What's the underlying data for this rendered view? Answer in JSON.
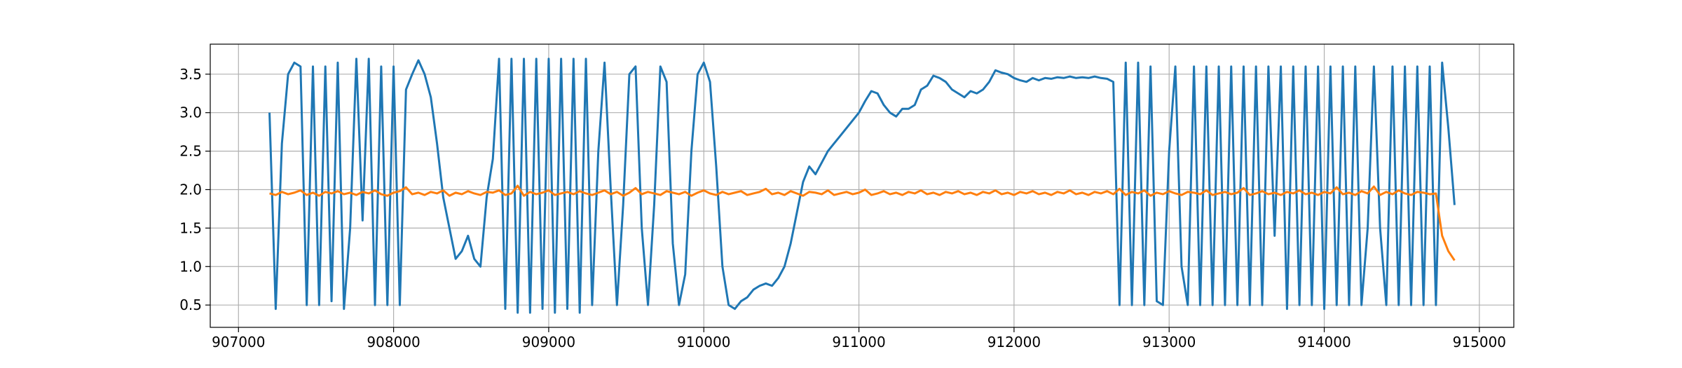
{
  "chart_data": {
    "type": "line",
    "x": [
      907200,
      907240,
      907280,
      907320,
      907360,
      907400,
      907440,
      907480,
      907520,
      907560,
      907600,
      907640,
      907680,
      907720,
      907760,
      907800,
      907840,
      907880,
      907920,
      907960,
      908000,
      908040,
      908080,
      908120,
      908160,
      908200,
      908240,
      908280,
      908320,
      908360,
      908400,
      908440,
      908480,
      908520,
      908560,
      908600,
      908640,
      908680,
      908720,
      908760,
      908800,
      908840,
      908880,
      908920,
      908960,
      909000,
      909040,
      909080,
      909120,
      909160,
      909200,
      909240,
      909280,
      909320,
      909360,
      909400,
      909440,
      909480,
      909520,
      909560,
      909600,
      909640,
      909680,
      909720,
      909760,
      909800,
      909840,
      909880,
      909920,
      909960,
      910000,
      910040,
      910080,
      910120,
      910160,
      910200,
      910240,
      910280,
      910320,
      910360,
      910400,
      910440,
      910480,
      910520,
      910560,
      910600,
      910640,
      910680,
      910720,
      910760,
      910800,
      910840,
      910880,
      910920,
      910960,
      911000,
      911040,
      911080,
      911120,
      911160,
      911200,
      911240,
      911280,
      911320,
      911360,
      911400,
      911440,
      911480,
      911520,
      911560,
      911600,
      911640,
      911680,
      911720,
      911760,
      911800,
      911840,
      911880,
      911920,
      911960,
      912000,
      912040,
      912080,
      912120,
      912160,
      912200,
      912240,
      912280,
      912320,
      912360,
      912400,
      912440,
      912480,
      912520,
      912560,
      912600,
      912640,
      912680,
      912720,
      912760,
      912800,
      912840,
      912880,
      912920,
      912960,
      913000,
      913040,
      913080,
      913120,
      913160,
      913200,
      913240,
      913280,
      913320,
      913360,
      913400,
      913440,
      913480,
      913520,
      913560,
      913600,
      913640,
      913680,
      913720,
      913760,
      913800,
      913840,
      913880,
      913920,
      913960,
      914000,
      914040,
      914080,
      914120,
      914160,
      914200,
      914240,
      914280,
      914320,
      914360,
      914400,
      914440,
      914480,
      914520,
      914560,
      914600,
      914640,
      914680,
      914720,
      914760,
      914800,
      914840
    ],
    "series": [
      {
        "color": "#1f77b4",
        "values": [
          3.0,
          0.45,
          2.6,
          3.5,
          3.65,
          3.6,
          0.5,
          3.6,
          0.5,
          3.6,
          0.55,
          3.65,
          0.45,
          1.5,
          3.7,
          1.6,
          3.7,
          0.5,
          3.6,
          0.5,
          3.6,
          0.5,
          3.3,
          3.5,
          3.68,
          3.5,
          3.2,
          2.6,
          1.9,
          1.5,
          1.1,
          1.2,
          1.4,
          1.1,
          1.0,
          1.9,
          2.4,
          3.7,
          0.45,
          3.7,
          0.4,
          3.7,
          0.4,
          3.7,
          0.45,
          3.7,
          0.4,
          3.7,
          0.45,
          3.7,
          0.4,
          3.7,
          0.5,
          2.5,
          3.65,
          2.0,
          0.5,
          1.8,
          3.5,
          3.6,
          1.5,
          0.5,
          1.8,
          3.6,
          3.4,
          1.3,
          0.5,
          0.9,
          2.5,
          3.5,
          3.65,
          3.4,
          2.3,
          1.0,
          0.5,
          0.45,
          0.55,
          0.6,
          0.7,
          0.75,
          0.78,
          0.75,
          0.85,
          1.0,
          1.3,
          1.7,
          2.1,
          2.3,
          2.2,
          2.35,
          2.5,
          2.6,
          2.7,
          2.8,
          2.9,
          3.0,
          3.15,
          3.28,
          3.25,
          3.1,
          3.0,
          2.95,
          3.05,
          3.05,
          3.1,
          3.3,
          3.35,
          3.48,
          3.45,
          3.4,
          3.3,
          3.25,
          3.2,
          3.28,
          3.25,
          3.3,
          3.4,
          3.55,
          3.52,
          3.5,
          3.45,
          3.42,
          3.4,
          3.45,
          3.42,
          3.45,
          3.44,
          3.46,
          3.45,
          3.47,
          3.45,
          3.46,
          3.45,
          3.47,
          3.45,
          3.44,
          3.4,
          0.5,
          3.65,
          0.5,
          3.65,
          0.5,
          3.6,
          0.55,
          0.5,
          2.5,
          3.6,
          1.0,
          0.5,
          3.6,
          0.5,
          3.6,
          0.5,
          3.6,
          0.5,
          3.6,
          0.5,
          3.6,
          0.5,
          3.6,
          0.5,
          3.6,
          1.4,
          3.6,
          0.45,
          3.6,
          0.5,
          3.6,
          0.5,
          3.6,
          0.45,
          3.6,
          0.5,
          3.6,
          0.5,
          3.6,
          0.5,
          1.5,
          3.6,
          1.5,
          0.5,
          3.6,
          0.5,
          3.6,
          0.5,
          3.6,
          0.5,
          3.6,
          0.5,
          3.65,
          2.8,
          1.8
        ]
      },
      {
        "color": "#ff7f0e",
        "values": [
          1.95,
          1.93,
          1.97,
          1.94,
          1.96,
          1.99,
          1.93,
          1.96,
          1.92,
          1.97,
          1.95,
          1.98,
          1.94,
          1.96,
          1.93,
          1.97,
          1.95,
          1.99,
          1.94,
          1.92,
          1.96,
          1.98,
          2.03,
          1.94,
          1.96,
          1.93,
          1.97,
          1.95,
          1.99,
          1.92,
          1.96,
          1.94,
          1.98,
          1.95,
          1.93,
          1.97,
          1.96,
          1.99,
          1.93,
          1.95,
          2.05,
          1.92,
          1.97,
          1.94,
          1.96,
          1.99,
          1.93,
          1.95,
          1.97,
          1.94,
          1.98,
          1.95,
          1.93,
          1.96,
          1.99,
          1.94,
          1.97,
          1.92,
          1.96,
          2.02,
          1.94,
          1.97,
          1.95,
          1.93,
          1.98,
          1.96,
          1.94,
          1.97,
          1.92,
          1.96,
          1.99,
          1.95,
          1.93,
          1.97,
          1.94,
          1.96,
          1.98,
          1.93,
          1.95,
          1.97,
          2.01,
          1.94,
          1.96,
          1.93,
          1.98,
          1.95,
          1.92,
          1.97,
          1.96,
          1.94,
          1.99,
          1.93,
          1.95,
          1.97,
          1.94,
          1.96,
          2.0,
          1.93,
          1.95,
          1.98,
          1.94,
          1.96,
          1.93,
          1.97,
          1.95,
          1.99,
          1.94,
          1.96,
          1.93,
          1.97,
          1.95,
          1.98,
          1.94,
          1.96,
          1.93,
          1.97,
          1.95,
          1.99,
          1.94,
          1.96,
          1.93,
          1.97,
          1.95,
          1.98,
          1.94,
          1.96,
          1.93,
          1.97,
          1.95,
          1.99,
          1.94,
          1.96,
          1.93,
          1.97,
          1.95,
          1.98,
          1.94,
          2.01,
          1.93,
          1.97,
          1.95,
          1.99,
          1.92,
          1.96,
          1.94,
          1.98,
          1.95,
          1.93,
          1.97,
          1.96,
          1.94,
          1.99,
          1.93,
          1.95,
          1.97,
          1.94,
          1.96,
          2.02,
          1.93,
          1.95,
          1.98,
          1.94,
          1.96,
          1.93,
          1.97,
          1.95,
          1.99,
          1.94,
          1.96,
          1.93,
          1.97,
          1.95,
          2.03,
          1.94,
          1.96,
          1.93,
          1.98,
          1.95,
          2.04,
          1.93,
          1.97,
          1.94,
          1.99,
          1.95,
          1.93,
          1.97,
          1.96,
          1.94,
          1.95,
          1.4,
          1.2,
          1.08
        ]
      }
    ],
    "xlim": [
      906818,
      915222
    ],
    "ylim": [
      0.21,
      3.89
    ],
    "xticks": [
      907000,
      908000,
      909000,
      910000,
      911000,
      912000,
      913000,
      914000,
      915000
    ],
    "yticks": [
      0.5,
      {
        "value": 1,
        "label": "1.0"
      },
      1.5,
      {
        "value": 2,
        "label": "2.0"
      },
      2.5,
      {
        "value": 3,
        "label": "3.0"
      },
      3.5
    ],
    "grid": true
  }
}
